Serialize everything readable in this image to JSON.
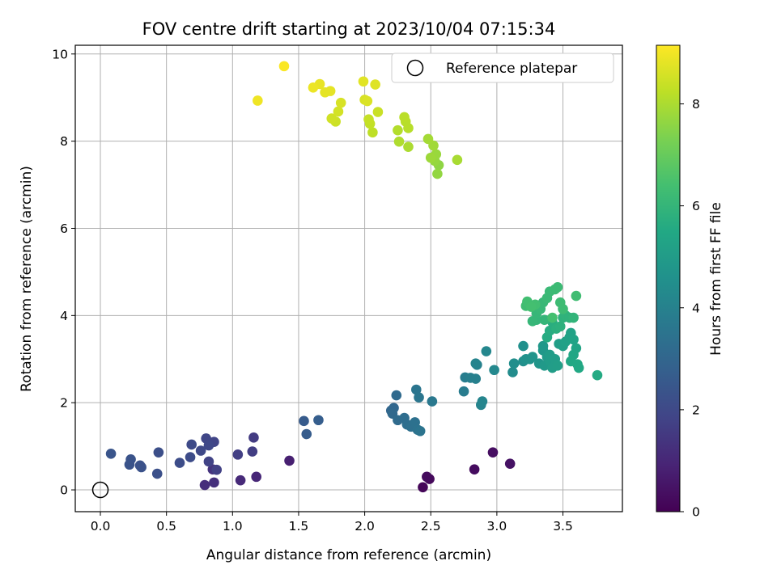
{
  "chart_data": {
    "type": "scatter",
    "title": "FOV centre drift starting at 2023/10/04 07:15:34",
    "xlabel": "Angular distance from reference (arcmin)",
    "ylabel": "Rotation from reference (arcmin)",
    "xlim": [
      -0.19,
      3.95
    ],
    "ylim": [
      -0.5,
      10.2
    ],
    "x_ticks": [
      "0.0",
      "0.5",
      "1.0",
      "1.5",
      "2.0",
      "2.5",
      "3.0",
      "3.5"
    ],
    "x_tick_values": [
      0,
      0.5,
      1.0,
      1.5,
      2.0,
      2.5,
      3.0,
      3.5
    ],
    "y_ticks": [
      "0",
      "2",
      "4",
      "6",
      "8",
      "10"
    ],
    "y_tick_values": [
      0,
      2,
      4,
      6,
      8,
      10
    ],
    "grid": true,
    "legend": {
      "position": "top-right",
      "entries": [
        "Reference platepar"
      ]
    },
    "reference_point": {
      "x": 0,
      "y": 0
    },
    "colorbar": {
      "label": "Hours from first FF file",
      "colormap": "viridis",
      "range": [
        0,
        9.15
      ],
      "ticks": [
        "0",
        "2",
        "4",
        "6",
        "8"
      ],
      "tick_values": [
        0,
        2,
        4,
        6,
        8
      ]
    },
    "points": [
      [
        2.44,
        0.06,
        0.15
      ],
      [
        2.49,
        0.25,
        0.2
      ],
      [
        2.47,
        0.3,
        0.25
      ],
      [
        2.83,
        0.47,
        0.3
      ],
      [
        2.97,
        0.86,
        0.35
      ],
      [
        3.1,
        0.6,
        0.45
      ],
      [
        1.43,
        0.67,
        0.8
      ],
      [
        1.18,
        0.3,
        1.0
      ],
      [
        1.06,
        0.22,
        1.1
      ],
      [
        0.79,
        0.11,
        1.2
      ],
      [
        0.86,
        0.17,
        1.25
      ],
      [
        0.85,
        0.47,
        1.35
      ],
      [
        1.16,
        1.2,
        1.6
      ],
      [
        1.15,
        0.88,
        1.65
      ],
      [
        1.04,
        0.81,
        1.7
      ],
      [
        0.88,
        0.46,
        1.75
      ],
      [
        0.82,
        0.65,
        1.8
      ],
      [
        0.86,
        1.1,
        1.85
      ],
      [
        0.8,
        1.18,
        1.9
      ],
      [
        0.82,
        1.02,
        1.95
      ],
      [
        0.76,
        0.9,
        2.0
      ],
      [
        0.69,
        1.04,
        2.05
      ],
      [
        0.68,
        0.75,
        2.1
      ],
      [
        0.6,
        0.62,
        2.15
      ],
      [
        0.44,
        0.86,
        2.2
      ],
      [
        0.43,
        0.37,
        2.25
      ],
      [
        0.31,
        0.52,
        2.3
      ],
      [
        0.3,
        0.56,
        2.3
      ],
      [
        0.23,
        0.7,
        2.35
      ],
      [
        0.22,
        0.58,
        2.35
      ],
      [
        0.08,
        0.83,
        2.4
      ],
      [
        1.54,
        1.58,
        2.6
      ],
      [
        1.56,
        1.28,
        2.65
      ],
      [
        1.65,
        1.6,
        2.7
      ],
      [
        2.2,
        1.82,
        3.0
      ],
      [
        2.22,
        1.88,
        3.05
      ],
      [
        2.21,
        1.75,
        3.1
      ],
      [
        2.24,
        2.17,
        3.15
      ],
      [
        2.25,
        1.6,
        3.2
      ],
      [
        2.3,
        1.65,
        3.25
      ],
      [
        2.32,
        1.5,
        3.3
      ],
      [
        2.35,
        1.45,
        3.35
      ],
      [
        2.38,
        1.55,
        3.4
      ],
      [
        2.4,
        1.38,
        3.45
      ],
      [
        2.42,
        1.35,
        3.5
      ],
      [
        2.39,
        2.3,
        3.55
      ],
      [
        2.41,
        2.12,
        3.6
      ],
      [
        2.51,
        2.03,
        3.65
      ],
      [
        2.75,
        2.26,
        3.8
      ],
      [
        2.76,
        2.58,
        3.85
      ],
      [
        2.8,
        2.57,
        3.9
      ],
      [
        2.84,
        2.55,
        3.95
      ],
      [
        2.85,
        2.87,
        4.0
      ],
      [
        2.84,
        2.9,
        4.05
      ],
      [
        2.88,
        1.95,
        4.1
      ],
      [
        2.89,
        2.03,
        4.15
      ],
      [
        2.92,
        3.18,
        4.2
      ],
      [
        2.98,
        2.75,
        4.25
      ],
      [
        3.12,
        2.7,
        4.4
      ],
      [
        3.13,
        2.9,
        4.45
      ],
      [
        3.2,
        2.95,
        4.5
      ],
      [
        3.2,
        3.3,
        4.55
      ],
      [
        3.22,
        3.0,
        4.6
      ],
      [
        3.25,
        3.0,
        4.65
      ],
      [
        3.27,
        3.05,
        4.7
      ],
      [
        3.32,
        2.9,
        4.75
      ],
      [
        3.35,
        3.2,
        4.8
      ],
      [
        3.35,
        3.3,
        4.85
      ],
      [
        3.36,
        2.85,
        4.9
      ],
      [
        3.38,
        3.05,
        4.95
      ],
      [
        3.4,
        2.95,
        5.0
      ],
      [
        3.4,
        3.1,
        5.0
      ],
      [
        3.42,
        2.8,
        5.05
      ],
      [
        3.44,
        3.0,
        5.05
      ],
      [
        3.46,
        2.85,
        5.1
      ],
      [
        3.47,
        3.35,
        5.1
      ],
      [
        3.5,
        3.3,
        5.15
      ],
      [
        3.52,
        3.4,
        5.2
      ],
      [
        3.55,
        3.5,
        5.25
      ],
      [
        3.56,
        3.6,
        5.25
      ],
      [
        3.58,
        3.45,
        5.3
      ],
      [
        3.6,
        3.25,
        5.35
      ],
      [
        3.58,
        3.1,
        5.4
      ],
      [
        3.56,
        2.95,
        5.45
      ],
      [
        3.61,
        2.88,
        5.5
      ],
      [
        3.62,
        2.8,
        5.5
      ],
      [
        3.76,
        2.63,
        5.55
      ],
      [
        3.38,
        3.5,
        5.6
      ],
      [
        3.4,
        3.65,
        5.65
      ],
      [
        3.42,
        3.85,
        5.7
      ],
      [
        3.45,
        3.7,
        5.75
      ],
      [
        3.48,
        3.75,
        5.8
      ],
      [
        3.5,
        3.95,
        5.85
      ],
      [
        3.52,
        4.0,
        5.9
      ],
      [
        3.55,
        3.95,
        5.9
      ],
      [
        3.58,
        3.95,
        5.95
      ],
      [
        3.36,
        3.9,
        6.0
      ],
      [
        3.3,
        3.9,
        6.0
      ],
      [
        3.27,
        3.87,
        6.05
      ],
      [
        3.3,
        4.05,
        6.05
      ],
      [
        3.33,
        4.15,
        6.1
      ],
      [
        3.35,
        4.3,
        6.1
      ],
      [
        3.38,
        4.4,
        6.15
      ],
      [
        3.4,
        4.55,
        6.15
      ],
      [
        3.44,
        4.6,
        6.2
      ],
      [
        3.46,
        4.65,
        6.2
      ],
      [
        3.48,
        4.3,
        6.25
      ],
      [
        3.5,
        4.15,
        6.25
      ],
      [
        3.6,
        4.45,
        6.3
      ],
      [
        3.22,
        4.22,
        6.3
      ],
      [
        3.23,
        4.32,
        6.35
      ],
      [
        3.29,
        4.25,
        6.35
      ],
      [
        3.26,
        4.2,
        6.4
      ],
      [
        3.42,
        3.95,
        6.4
      ],
      [
        2.56,
        7.45,
        7.6
      ],
      [
        2.55,
        7.25,
        7.65
      ],
      [
        2.53,
        7.55,
        7.7
      ],
      [
        2.54,
        7.7,
        7.75
      ],
      [
        2.5,
        7.62,
        7.8
      ],
      [
        2.52,
        7.9,
        7.85
      ],
      [
        2.48,
        8.05,
        7.9
      ],
      [
        2.7,
        7.57,
        7.95
      ],
      [
        2.33,
        7.87,
        8.0
      ],
      [
        2.26,
        7.99,
        8.05
      ],
      [
        2.25,
        8.25,
        8.1
      ],
      [
        2.33,
        8.3,
        8.15
      ],
      [
        2.31,
        8.45,
        8.15
      ],
      [
        2.3,
        8.55,
        8.2
      ],
      [
        2.06,
        8.2,
        8.25
      ],
      [
        2.04,
        8.4,
        8.3
      ],
      [
        2.03,
        8.5,
        8.35
      ],
      [
        2.1,
        8.67,
        8.4
      ],
      [
        1.78,
        8.45,
        8.45
      ],
      [
        1.75,
        8.52,
        8.5
      ],
      [
        1.8,
        8.68,
        8.55
      ],
      [
        1.82,
        8.88,
        8.6
      ],
      [
        2.0,
        8.95,
        8.6
      ],
      [
        2.02,
        8.92,
        8.65
      ],
      [
        2.08,
        9.3,
        8.7
      ],
      [
        1.99,
        9.37,
        8.75
      ],
      [
        1.7,
        9.12,
        8.8
      ],
      [
        1.74,
        9.15,
        8.8
      ],
      [
        1.66,
        9.31,
        8.85
      ],
      [
        1.61,
        9.23,
        8.9
      ],
      [
        1.19,
        8.93,
        8.95
      ],
      [
        1.39,
        9.72,
        9.1
      ]
    ]
  }
}
